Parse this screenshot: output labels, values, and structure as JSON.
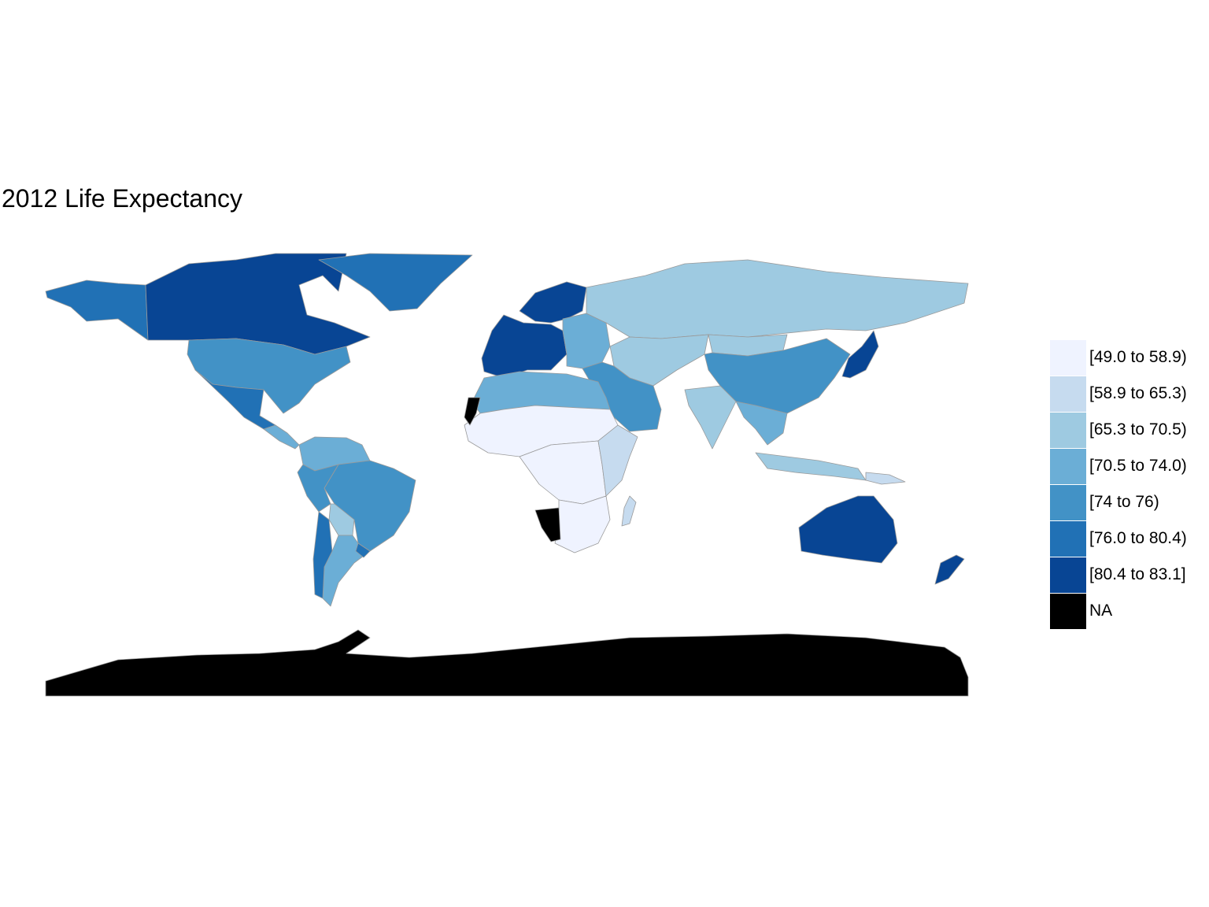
{
  "title": "2012 Life Expectancy",
  "legend": {
    "items": [
      {
        "label": "[49.0 to 58.9)",
        "color": "#eff3ff"
      },
      {
        "label": "[58.9 to 65.3)",
        "color": "#c6dbef"
      },
      {
        "label": "[65.3 to 70.5)",
        "color": "#9ecae1"
      },
      {
        "label": "[70.5 to 74.0)",
        "color": "#6baed6"
      },
      {
        "label": "[74 to 76)",
        "color": "#4292c6"
      },
      {
        "label": "[76.0 to 80.4)",
        "color": "#2171b5"
      },
      {
        "label": "[80.4 to 83.1]",
        "color": "#084594"
      },
      {
        "label": "NA",
        "color": "#000000"
      }
    ]
  },
  "map_regions": [
    {
      "name": "greenland",
      "bin": 5
    },
    {
      "name": "canada",
      "bin": 6
    },
    {
      "name": "alaska",
      "bin": 5
    },
    {
      "name": "united-states",
      "bin": 4
    },
    {
      "name": "mexico",
      "bin": 5
    },
    {
      "name": "central-america",
      "bin": 3
    },
    {
      "name": "colombia-venezuela",
      "bin": 3
    },
    {
      "name": "brazil",
      "bin": 4
    },
    {
      "name": "bolivia",
      "bin": 2
    },
    {
      "name": "peru",
      "bin": 4
    },
    {
      "name": "argentina",
      "bin": 3
    },
    {
      "name": "chile",
      "bin": 5
    },
    {
      "name": "uruguay",
      "bin": 5
    },
    {
      "name": "scandinavia",
      "bin": 6
    },
    {
      "name": "western-europe",
      "bin": 6
    },
    {
      "name": "eastern-europe",
      "bin": 3
    },
    {
      "name": "russia",
      "bin": 2
    },
    {
      "name": "central-asia",
      "bin": 2
    },
    {
      "name": "china",
      "bin": 4
    },
    {
      "name": "mongolia",
      "bin": 2
    },
    {
      "name": "india",
      "bin": 2
    },
    {
      "name": "southeast-asia",
      "bin": 3
    },
    {
      "name": "indonesia",
      "bin": 2
    },
    {
      "name": "japan",
      "bin": 6
    },
    {
      "name": "middle-east",
      "bin": 4
    },
    {
      "name": "north-africa",
      "bin": 3
    },
    {
      "name": "sahel",
      "bin": 0
    },
    {
      "name": "central-africa",
      "bin": 0
    },
    {
      "name": "east-africa",
      "bin": 1
    },
    {
      "name": "southern-africa",
      "bin": 0
    },
    {
      "name": "namibia",
      "bin": 7
    },
    {
      "name": "western-sahara",
      "bin": 7
    },
    {
      "name": "madagascar",
      "bin": 1
    },
    {
      "name": "australia",
      "bin": 6
    },
    {
      "name": "new-zealand",
      "bin": 6
    },
    {
      "name": "papua-new-guinea",
      "bin": 1
    },
    {
      "name": "antarctica",
      "bin": 7
    }
  ]
}
